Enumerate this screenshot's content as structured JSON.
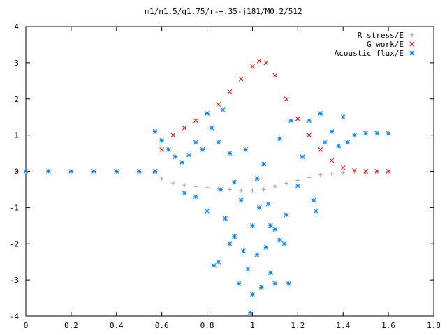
{
  "chart_data": {
    "type": "scatter",
    "title": "m1/n1.5/q1.75/r-+.35-j181/M0.2/512",
    "xlabel": "",
    "ylabel": "",
    "xlim": [
      0,
      1.8
    ],
    "ylim": [
      -4,
      4
    ],
    "xticks": [
      "0",
      "0.2",
      "0.4",
      "0.6",
      "0.8",
      "1",
      "1.2",
      "1.4",
      "1.6",
      "1.8"
    ],
    "yticks": [
      "4",
      "3",
      "2",
      "1",
      "0",
      "-1",
      "-2",
      "-3",
      "-4"
    ],
    "grid": false,
    "legend_position": "top-right",
    "series": [
      {
        "name": "R stress/E",
        "marker": "+",
        "color": "#a0a0a0",
        "points": [
          [
            0.57,
            0.0
          ],
          [
            0.6,
            -0.2
          ],
          [
            0.65,
            -0.32
          ],
          [
            0.7,
            -0.38
          ],
          [
            0.75,
            -0.42
          ],
          [
            0.8,
            -0.45
          ],
          [
            0.85,
            -0.47
          ],
          [
            0.9,
            -0.5
          ],
          [
            0.95,
            -0.53
          ],
          [
            1.0,
            -0.53
          ],
          [
            1.05,
            -0.5
          ],
          [
            1.1,
            -0.42
          ],
          [
            1.15,
            -0.33
          ],
          [
            1.2,
            -0.25
          ],
          [
            1.25,
            -0.17
          ],
          [
            1.3,
            -0.1
          ],
          [
            1.35,
            -0.07
          ],
          [
            1.4,
            -0.04
          ],
          [
            1.45,
            -0.02
          ],
          [
            1.5,
            -0.01
          ],
          [
            1.55,
            0.0
          ],
          [
            1.6,
            0.0
          ]
        ]
      },
      {
        "name": "G work/E",
        "marker": "x",
        "color": "#ff0000",
        "points": [
          [
            0.57,
            0.0
          ],
          [
            0.6,
            0.6
          ],
          [
            0.65,
            1.0
          ],
          [
            0.7,
            1.2
          ],
          [
            0.75,
            1.4
          ],
          [
            0.8,
            1.6
          ],
          [
            0.85,
            1.85
          ],
          [
            0.9,
            2.2
          ],
          [
            0.95,
            2.55
          ],
          [
            1.0,
            2.9
          ],
          [
            1.03,
            3.05
          ],
          [
            1.06,
            3.0
          ],
          [
            1.1,
            2.65
          ],
          [
            1.15,
            2.0
          ],
          [
            1.2,
            1.45
          ],
          [
            1.25,
            1.0
          ],
          [
            1.3,
            0.6
          ],
          [
            1.35,
            0.3
          ],
          [
            1.4,
            0.1
          ],
          [
            1.45,
            0.03
          ],
          [
            1.5,
            0.0
          ],
          [
            1.55,
            0.0
          ],
          [
            1.6,
            0.0
          ]
        ]
      },
      {
        "name": "Acoustic flux/E",
        "marker": "*",
        "color": "#0080ff",
        "points": [
          [
            0.0,
            0.0
          ],
          [
            0.1,
            0.0
          ],
          [
            0.2,
            0.0
          ],
          [
            0.3,
            0.0
          ],
          [
            0.4,
            0.0
          ],
          [
            0.5,
            0.0
          ],
          [
            0.57,
            0.0
          ],
          [
            0.57,
            1.1
          ],
          [
            0.6,
            0.85
          ],
          [
            0.63,
            0.6
          ],
          [
            0.66,
            0.4
          ],
          [
            0.69,
            0.25
          ],
          [
            0.72,
            0.45
          ],
          [
            0.75,
            0.8
          ],
          [
            0.78,
            0.6
          ],
          [
            0.8,
            1.6
          ],
          [
            0.82,
            1.2
          ],
          [
            0.85,
            0.8
          ],
          [
            0.87,
            1.7
          ],
          [
            0.9,
            0.5
          ],
          [
            0.92,
            -0.3
          ],
          [
            0.95,
            -0.8
          ],
          [
            0.97,
            0.6
          ],
          [
            1.0,
            -1.5
          ],
          [
            1.02,
            -0.2
          ],
          [
            1.05,
            0.2
          ],
          [
            1.07,
            -0.9
          ],
          [
            1.1,
            -1.6
          ],
          [
            1.12,
            0.9
          ],
          [
            1.15,
            -1.2
          ],
          [
            1.17,
            1.4
          ],
          [
            1.2,
            -0.4
          ],
          [
            1.22,
            0.4
          ],
          [
            1.25,
            1.4
          ],
          [
            1.27,
            -0.8
          ],
          [
            1.3,
            1.6
          ],
          [
            1.32,
            0.8
          ],
          [
            1.35,
            1.1
          ],
          [
            1.38,
            0.7
          ],
          [
            1.4,
            1.5
          ],
          [
            1.42,
            0.8
          ],
          [
            1.45,
            1.0
          ],
          [
            1.5,
            1.05
          ],
          [
            1.55,
            1.05
          ],
          [
            1.6,
            1.05
          ],
          [
            0.7,
            -0.6
          ],
          [
            0.75,
            -0.7
          ],
          [
            0.8,
            -1.1
          ],
          [
            0.83,
            -2.6
          ],
          [
            0.85,
            -2.5
          ],
          [
            0.88,
            -1.3
          ],
          [
            0.9,
            -2.0
          ],
          [
            0.92,
            -1.8
          ],
          [
            0.94,
            -3.1
          ],
          [
            0.96,
            -2.2
          ],
          [
            0.98,
            -2.7
          ],
          [
            1.0,
            -3.4
          ],
          [
            1.02,
            -2.3
          ],
          [
            1.04,
            -3.2
          ],
          [
            1.06,
            -2.1
          ],
          [
            1.08,
            -2.8
          ],
          [
            1.1,
            -3.1
          ],
          [
            1.12,
            -1.9
          ],
          [
            1.14,
            -2.0
          ],
          [
            1.16,
            -3.1
          ],
          [
            0.99,
            -3.9
          ],
          [
            1.03,
            -1.0
          ],
          [
            1.08,
            -1.5
          ],
          [
            0.86,
            -0.5
          ],
          [
            1.28,
            -1.1
          ]
        ]
      }
    ]
  }
}
